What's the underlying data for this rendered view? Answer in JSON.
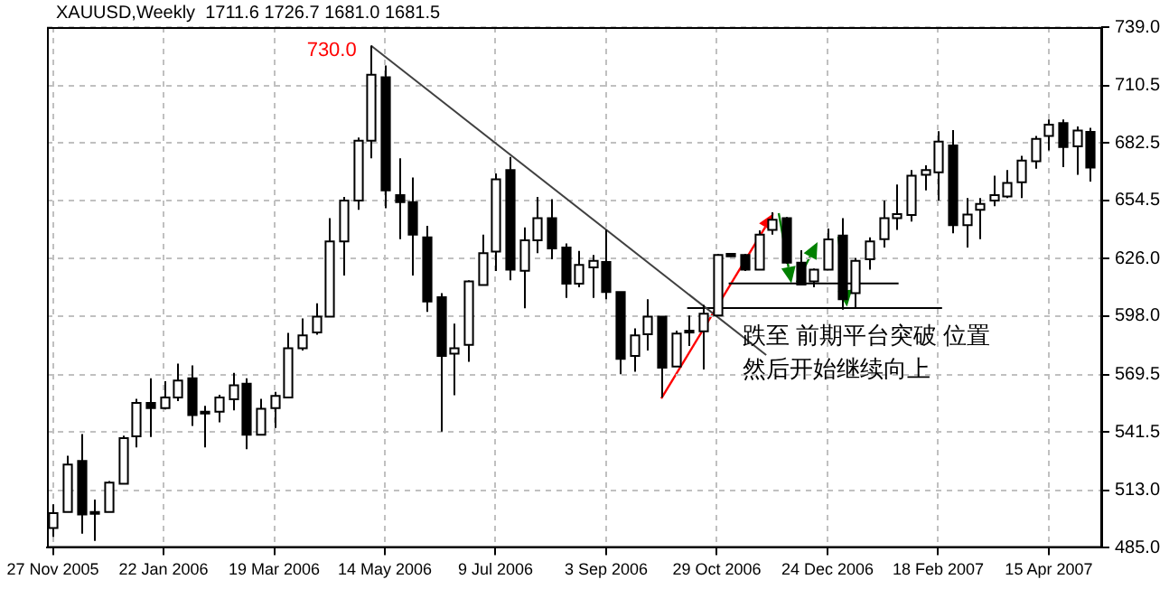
{
  "chart_data": {
    "type": "candlestick",
    "title": "XAUUSD,Weekly  1711.6 1726.7 1681.0 1681.5",
    "x": [
      "2005-11-27",
      "2005-12-04",
      "2005-12-11",
      "2005-12-18",
      "2005-12-25",
      "2006-01-01",
      "2006-01-08",
      "2006-01-15",
      "2006-01-22",
      "2006-01-29",
      "2006-02-05",
      "2006-02-12",
      "2006-02-19",
      "2006-02-26",
      "2006-03-05",
      "2006-03-12",
      "2006-03-19",
      "2006-03-26",
      "2006-04-02",
      "2006-04-09",
      "2006-04-16",
      "2006-04-23",
      "2006-04-30",
      "2006-05-07",
      "2006-05-14",
      "2006-05-21",
      "2006-05-28",
      "2006-06-04",
      "2006-06-11",
      "2006-06-18",
      "2006-06-25",
      "2006-07-02",
      "2006-07-09",
      "2006-07-16",
      "2006-07-23",
      "2006-07-30",
      "2006-08-06",
      "2006-08-13",
      "2006-08-20",
      "2006-08-27",
      "2006-09-03",
      "2006-09-10",
      "2006-09-17",
      "2006-09-24",
      "2006-10-01",
      "2006-10-08",
      "2006-10-15",
      "2006-10-22",
      "2006-10-29",
      "2006-11-05",
      "2006-11-12",
      "2006-11-19",
      "2006-11-26",
      "2006-12-03",
      "2006-12-10",
      "2006-12-17",
      "2006-12-24",
      "2006-12-31",
      "2007-01-07",
      "2007-01-14",
      "2007-01-21",
      "2007-01-28",
      "2007-02-04",
      "2007-02-11",
      "2007-02-18",
      "2007-02-25",
      "2007-03-04",
      "2007-03-11",
      "2007-03-18",
      "2007-03-25",
      "2007-04-01",
      "2007-04-08",
      "2007-04-15",
      "2007-04-22",
      "2007-04-29",
      "2007-05-06"
    ],
    "ohlc": [
      [
        494.7,
        506.2,
        490.4,
        501.9
      ],
      [
        502.5,
        529.9,
        502.5,
        525.6
      ],
      [
        527.4,
        540.5,
        491.9,
        501.3
      ],
      [
        502.5,
        508.5,
        488.4,
        501.6
      ],
      [
        502.5,
        517.6,
        502.5,
        516.8
      ],
      [
        516.2,
        539.7,
        516.2,
        538.5
      ],
      [
        539.4,
        557.7,
        534.0,
        555.7
      ],
      [
        555.7,
        567.7,
        539.1,
        553.1
      ],
      [
        553.1,
        566.3,
        552.5,
        558.3
      ],
      [
        558.3,
        574.9,
        556.6,
        566.6
      ],
      [
        567.7,
        574.0,
        544.5,
        549.7
      ],
      [
        551.4,
        554.3,
        534.0,
        550.5
      ],
      [
        551.4,
        559.7,
        546.2,
        558.3
      ],
      [
        557.4,
        570.3,
        552.0,
        564.3
      ],
      [
        565.1,
        567.7,
        533.1,
        540.2
      ],
      [
        540.2,
        557.7,
        540.2,
        552.8
      ],
      [
        553.1,
        561.1,
        543.4,
        559.1
      ],
      [
        558.3,
        589.8,
        558.3,
        582.3
      ],
      [
        582.3,
        596.9,
        581.2,
        588.6
      ],
      [
        590.0,
        604.3,
        588.9,
        597.8
      ],
      [
        597.8,
        645.8,
        597.8,
        634.4
      ],
      [
        634.4,
        656.1,
        617.8,
        654.4
      ],
      [
        654.4,
        685.1,
        649.9,
        683.6
      ],
      [
        683.6,
        730.0,
        675.0,
        715.7
      ],
      [
        714.5,
        720.3,
        650.7,
        659.3
      ],
      [
        657.0,
        675.0,
        635.5,
        653.6
      ],
      [
        653.6,
        665.6,
        617.8,
        637.8
      ],
      [
        636.4,
        642.1,
        600.1,
        605.2
      ],
      [
        607.2,
        609.2,
        541.7,
        578.6
      ],
      [
        579.7,
        594.3,
        559.4,
        582.3
      ],
      [
        584.0,
        615.5,
        575.7,
        614.9
      ],
      [
        613.2,
        637.8,
        613.2,
        628.7
      ],
      [
        629.5,
        667.6,
        620.0,
        664.7
      ],
      [
        669.3,
        675.6,
        615.5,
        620.7
      ],
      [
        620.1,
        641.3,
        601.8,
        635.0
      ],
      [
        635.0,
        656.1,
        628.7,
        645.8
      ],
      [
        645.8,
        655.0,
        625.8,
        631.0
      ],
      [
        631.5,
        633.5,
        606.9,
        613.8
      ],
      [
        613.8,
        629.8,
        612.1,
        623.0
      ],
      [
        621.8,
        627.8,
        606.9,
        625.0
      ],
      [
        624.4,
        640.1,
        606.3,
        609.8
      ],
      [
        609.8,
        609.8,
        569.7,
        577.2
      ],
      [
        578.6,
        592.0,
        570.9,
        588.6
      ],
      [
        589.2,
        606.3,
        581.2,
        597.8
      ],
      [
        597.8,
        597.8,
        558.3,
        572.9
      ],
      [
        573.4,
        590.9,
        573.4,
        589.5
      ],
      [
        590.6,
        598.3,
        583.5,
        590.9
      ],
      [
        590.6,
        603.5,
        572.0,
        599.2
      ],
      [
        598.3,
        628.4,
        598.3,
        627.8
      ],
      [
        628.4,
        628.7,
        627.0,
        627.2
      ],
      [
        627.8,
        628.4,
        620.0,
        620.7
      ],
      [
        620.7,
        639.8,
        620.7,
        637.8
      ],
      [
        640.1,
        648.7,
        637.8,
        645.0
      ],
      [
        645.8,
        646.4,
        623.5,
        624.1
      ],
      [
        624.1,
        630.2,
        613.4,
        613.4
      ],
      [
        614.9,
        621.2,
        612.1,
        620.7
      ],
      [
        620.7,
        640.7,
        620.7,
        635.4
      ],
      [
        637.3,
        645.8,
        601.2,
        606.3
      ],
      [
        609.2,
        626.4,
        602.0,
        625.0
      ],
      [
        625.8,
        636.4,
        620.7,
        634.4
      ],
      [
        635.5,
        654.4,
        631.5,
        645.8
      ],
      [
        645.8,
        662.2,
        640.1,
        647.8
      ],
      [
        647.3,
        669.3,
        644.1,
        666.5
      ],
      [
        667.0,
        671.6,
        659.3,
        669.3
      ],
      [
        668.2,
        688.2,
        654.4,
        683.1
      ],
      [
        681.3,
        688.8,
        638.4,
        642.4
      ],
      [
        642.4,
        655.6,
        631.5,
        647.6
      ],
      [
        649.9,
        655.6,
        635.5,
        652.7
      ],
      [
        654.4,
        666.5,
        651.6,
        657.0
      ],
      [
        656.4,
        669.3,
        655.6,
        663.0
      ],
      [
        663.3,
        676.2,
        655.6,
        673.9
      ],
      [
        673.6,
        685.9,
        669.9,
        684.5
      ],
      [
        685.9,
        693.9,
        678.8,
        691.4
      ],
      [
        692.2,
        693.9,
        670.7,
        680.5
      ],
      [
        680.8,
        690.5,
        667.0,
        688.5
      ],
      [
        687.9,
        689.9,
        663.6,
        670.5
      ]
    ],
    "series": [
      {
        "type": "line",
        "x": [
          "2006-05-07",
          "2006-11-23"
        ],
        "values": [
          730,
          579
        ],
        "color": "#404040"
      },
      {
        "type": "line",
        "x": [
          "2006-11-04",
          "2007-01-29"
        ],
        "values": [
          614,
          614
        ],
        "color": "#000000"
      },
      {
        "type": "line",
        "x": [
          "2006-10-14",
          "2007-02-20"
        ],
        "values": [
          602,
          602
        ],
        "color": "#000000"
      }
    ],
    "xlim": [
      "2005-11-24",
      "2007-05-12"
    ],
    "xticks": [
      {
        "value": "2005-11-27",
        "label": "27 Nov 2005"
      },
      {
        "value": "2006-01-22",
        "label": "22 Jan 2006"
      },
      {
        "value": "2006-03-19",
        "label": "19 Mar 2006"
      },
      {
        "value": "2006-05-14",
        "label": "14 May 2006"
      },
      {
        "value": "2006-07-09",
        "label": "9 Jul 2006"
      },
      {
        "value": "2006-09-03",
        "label": "3 Sep 2006"
      },
      {
        "value": "2006-10-29",
        "label": "29 Oct 2006"
      },
      {
        "value": "2006-12-24",
        "label": "24 Dec 2006"
      },
      {
        "value": "2007-02-18",
        "label": "18 Feb 2007"
      },
      {
        "value": "2007-04-15",
        "label": "15 Apr 2007"
      }
    ],
    "ylim": [
      485,
      739
    ],
    "yticks": [
      {
        "value": 485,
        "label": "485.0"
      },
      {
        "value": 513,
        "label": "513.0"
      },
      {
        "value": 541.5,
        "label": "541.5"
      },
      {
        "value": 569.5,
        "label": "569.5"
      },
      {
        "value": 598,
        "label": "598.0"
      },
      {
        "value": 626,
        "label": "626.0"
      },
      {
        "value": 654.5,
        "label": "654.5"
      },
      {
        "value": 682.5,
        "label": "682.5"
      },
      {
        "value": 710.5,
        "label": "710.5"
      },
      {
        "value": 739,
        "label": "739.0"
      }
    ],
    "annotations": [
      {
        "text": "730.0",
        "x": "2006-05-07",
        "y": 730
      },
      "跌至 前期平台突破 位置",
      "然后开始继续向上"
    ],
    "grid": true,
    "legend": false
  }
}
